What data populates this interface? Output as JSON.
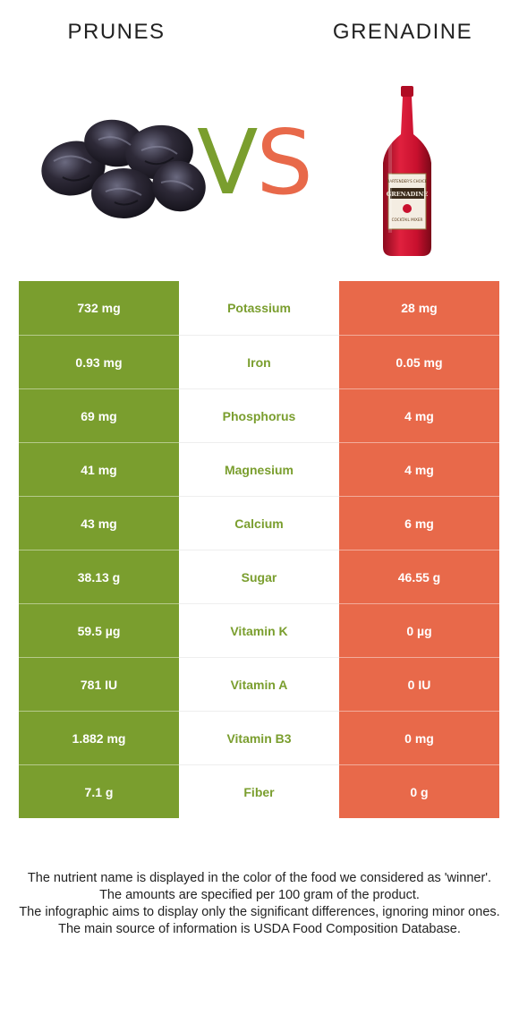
{
  "header": {
    "left_title": "PRUNES",
    "right_title": "GRENADINE"
  },
  "vs": {
    "v": "V",
    "s": "S"
  },
  "bottle_label": {
    "top": "BARTENDER'S CHOICE",
    "main": "GRENADINE",
    "sub": "COCKTAIL MIXER"
  },
  "colors": {
    "prunes": "#7a9e2e",
    "grenadine": "#e8694a",
    "prune_fruit": "#2e2a38",
    "bottle": "#c8102e"
  },
  "icons": {
    "left": "prunes-illustration",
    "right": "grenadine-bottle-illustration"
  },
  "nutrients": [
    {
      "left": "732 mg",
      "name": "Potassium",
      "right": "28 mg",
      "winner": "left"
    },
    {
      "left": "0.93 mg",
      "name": "Iron",
      "right": "0.05 mg",
      "winner": "left"
    },
    {
      "left": "69 mg",
      "name": "Phosphorus",
      "right": "4 mg",
      "winner": "left"
    },
    {
      "left": "41 mg",
      "name": "Magnesium",
      "right": "4 mg",
      "winner": "left"
    },
    {
      "left": "43 mg",
      "name": "Calcium",
      "right": "6 mg",
      "winner": "left"
    },
    {
      "left": "38.13 g",
      "name": "Sugar",
      "right": "46.55 g",
      "winner": "left"
    },
    {
      "left": "59.5 µg",
      "name": "Vitamin K",
      "right": "0 µg",
      "winner": "left"
    },
    {
      "left": "781 IU",
      "name": "Vitamin A",
      "right": "0 IU",
      "winner": "left"
    },
    {
      "left": "1.882 mg",
      "name": "Vitamin B3",
      "right": "0 mg",
      "winner": "left"
    },
    {
      "left": "7.1 g",
      "name": "Fiber",
      "right": "0 g",
      "winner": "left"
    }
  ],
  "footnotes": [
    "The nutrient name is displayed in the color of the food we considered as 'winner'.",
    "The amounts are specified per 100 gram of the product.",
    "The infographic aims to display only the significant differences, ignoring minor ones.",
    "The main source of information is USDA Food Composition Database."
  ]
}
